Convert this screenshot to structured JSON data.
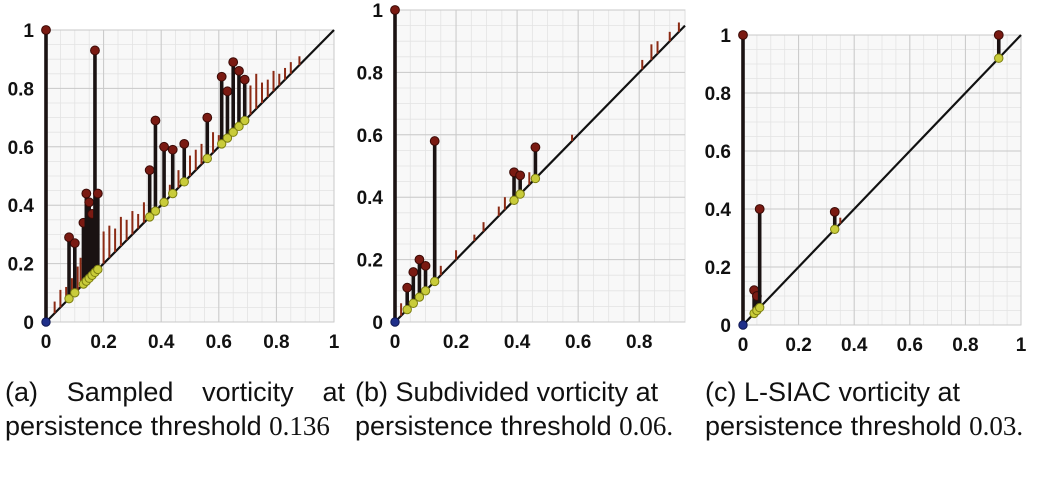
{
  "chart_data": [
    {
      "type": "scatter",
      "title": "",
      "xlabel": "",
      "ylabel": "",
      "xlim": [
        0,
        1
      ],
      "ylim": [
        0,
        1
      ],
      "grid": true,
      "diagonal": true,
      "x_ticks": [
        "0",
        "0.2",
        "0.4",
        "0.6",
        "0.8",
        "1"
      ],
      "y_ticks": [
        "0",
        "0.2",
        "0.4",
        "0.6",
        "0.8",
        "1"
      ],
      "tick_values": [
        0,
        0.2,
        0.4,
        0.6,
        0.8,
        1
      ],
      "caption": {
        "label": "(a) Sampled vorticity at persistence threshold",
        "threshold": "0.136"
      },
      "pairs": [
        {
          "birth": 0.0,
          "death": 1.0
        },
        {
          "birth": 0.08,
          "death": 0.29
        },
        {
          "birth": 0.1,
          "death": 0.27
        },
        {
          "birth": 0.13,
          "death": 0.34
        },
        {
          "birth": 0.14,
          "death": 0.44
        },
        {
          "birth": 0.15,
          "death": 0.41
        },
        {
          "birth": 0.16,
          "death": 0.37
        },
        {
          "birth": 0.17,
          "death": 0.93
        },
        {
          "birth": 0.18,
          "death": 0.44
        },
        {
          "birth": 0.36,
          "death": 0.52
        },
        {
          "birth": 0.38,
          "death": 0.69
        },
        {
          "birth": 0.41,
          "death": 0.6
        },
        {
          "birth": 0.44,
          "death": 0.59
        },
        {
          "birth": 0.48,
          "death": 0.61
        },
        {
          "birth": 0.56,
          "death": 0.7
        },
        {
          "birth": 0.61,
          "death": 0.84
        },
        {
          "birth": 0.63,
          "death": 0.79
        },
        {
          "birth": 0.65,
          "death": 0.89
        },
        {
          "birth": 0.67,
          "death": 0.86
        },
        {
          "birth": 0.69,
          "death": 0.83
        }
      ],
      "noise_pairs": [
        {
          "birth": 0.03,
          "death": 0.07
        },
        {
          "birth": 0.05,
          "death": 0.11
        },
        {
          "birth": 0.07,
          "death": 0.12
        },
        {
          "birth": 0.09,
          "death": 0.15
        },
        {
          "birth": 0.11,
          "death": 0.19
        },
        {
          "birth": 0.12,
          "death": 0.22
        },
        {
          "birth": 0.2,
          "death": 0.31
        },
        {
          "birth": 0.22,
          "death": 0.33
        },
        {
          "birth": 0.24,
          "death": 0.32
        },
        {
          "birth": 0.26,
          "death": 0.36
        },
        {
          "birth": 0.28,
          "death": 0.35
        },
        {
          "birth": 0.3,
          "death": 0.38
        },
        {
          "birth": 0.32,
          "death": 0.37
        },
        {
          "birth": 0.34,
          "death": 0.41
        },
        {
          "birth": 0.43,
          "death": 0.47
        },
        {
          "birth": 0.46,
          "death": 0.52
        },
        {
          "birth": 0.5,
          "death": 0.57
        },
        {
          "birth": 0.52,
          "death": 0.59
        },
        {
          "birth": 0.54,
          "death": 0.61
        },
        {
          "birth": 0.58,
          "death": 0.65
        },
        {
          "birth": 0.6,
          "death": 0.64
        },
        {
          "birth": 0.71,
          "death": 0.81
        },
        {
          "birth": 0.73,
          "death": 0.85
        },
        {
          "birth": 0.75,
          "death": 0.82
        },
        {
          "birth": 0.77,
          "death": 0.83
        },
        {
          "birth": 0.79,
          "death": 0.86
        },
        {
          "birth": 0.81,
          "death": 0.85
        },
        {
          "birth": 0.83,
          "death": 0.87
        },
        {
          "birth": 0.85,
          "death": 0.89
        },
        {
          "birth": 0.88,
          "death": 0.91
        }
      ]
    },
    {
      "type": "scatter",
      "title": "",
      "xlabel": "",
      "ylabel": "",
      "xlim": [
        0,
        0.95
      ],
      "ylim": [
        0,
        1
      ],
      "grid": true,
      "diagonal": true,
      "x_ticks": [
        "0",
        "0.2",
        "0.4",
        "0.6",
        "0.8"
      ],
      "x_tick_values": [
        0,
        0.2,
        0.4,
        0.6,
        0.8
      ],
      "y_ticks": [
        "0",
        "0.2",
        "0.4",
        "0.6",
        "0.8",
        "1"
      ],
      "y_tick_values": [
        0,
        0.2,
        0.4,
        0.6,
        0.8,
        1
      ],
      "caption": {
        "label": "(b) Subdivided vorticity at persistence threshold",
        "threshold": "0.06."
      },
      "pairs": [
        {
          "birth": 0.0,
          "death": 1.0
        },
        {
          "birth": 0.04,
          "death": 0.11
        },
        {
          "birth": 0.06,
          "death": 0.16
        },
        {
          "birth": 0.08,
          "death": 0.2
        },
        {
          "birth": 0.1,
          "death": 0.18
        },
        {
          "birth": 0.13,
          "death": 0.58
        },
        {
          "birth": 0.39,
          "death": 0.48
        },
        {
          "birth": 0.41,
          "death": 0.47
        },
        {
          "birth": 0.46,
          "death": 0.56
        }
      ],
      "noise_pairs": [
        {
          "birth": 0.02,
          "death": 0.06
        },
        {
          "birth": 0.15,
          "death": 0.18
        },
        {
          "birth": 0.2,
          "death": 0.23
        },
        {
          "birth": 0.26,
          "death": 0.28
        },
        {
          "birth": 0.29,
          "death": 0.32
        },
        {
          "birth": 0.34,
          "death": 0.37
        },
        {
          "birth": 0.36,
          "death": 0.4
        },
        {
          "birth": 0.44,
          "death": 0.48
        },
        {
          "birth": 0.58,
          "death": 0.6
        },
        {
          "birth": 0.81,
          "death": 0.84
        },
        {
          "birth": 0.84,
          "death": 0.89
        },
        {
          "birth": 0.86,
          "death": 0.9
        },
        {
          "birth": 0.9,
          "death": 0.93
        },
        {
          "birth": 0.93,
          "death": 0.96
        }
      ]
    },
    {
      "type": "scatter",
      "title": "",
      "xlabel": "",
      "ylabel": "",
      "xlim": [
        0,
        1
      ],
      "ylim": [
        0,
        1
      ],
      "grid": true,
      "diagonal": true,
      "x_ticks": [
        "0",
        "0.2",
        "0.4",
        "0.6",
        "0.8",
        "1"
      ],
      "y_ticks": [
        "0",
        "0.2",
        "0.4",
        "0.6",
        "0.8",
        "1"
      ],
      "tick_values": [
        0,
        0.2,
        0.4,
        0.6,
        0.8,
        1
      ],
      "caption": {
        "label": "(c) L-SIAC vorticity at persistence threshold",
        "threshold": "0.03."
      },
      "pairs": [
        {
          "birth": 0.0,
          "death": 1.0
        },
        {
          "birth": 0.04,
          "death": 0.12
        },
        {
          "birth": 0.05,
          "death": 0.1
        },
        {
          "birth": 0.06,
          "death": 0.4
        },
        {
          "birth": 0.33,
          "death": 0.39
        },
        {
          "birth": 0.92,
          "death": 1.0
        }
      ],
      "noise_pairs": [
        {
          "birth": 0.35,
          "death": 0.37
        }
      ]
    }
  ]
}
